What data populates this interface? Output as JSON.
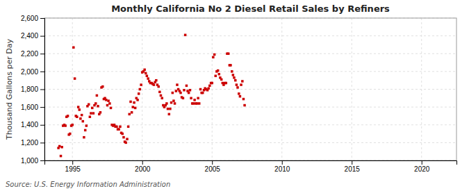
{
  "chart_data": {
    "type": "scatter",
    "title": "Monthly California No 2 Diesel Retail Sales by Refiners",
    "ylabel": "Thousand Gallons per Day",
    "annotations": [
      "Source: U.S. Energy Information Administration"
    ],
    "color": "#CC0000",
    "marker": "square",
    "grid": true,
    "xlim": [
      1993.0,
      2022.5
    ],
    "ylim": [
      1000,
      2600
    ],
    "xticks": [
      1995,
      2000,
      2005,
      2010,
      2015,
      2020
    ],
    "yticks": [
      {
        "value": 1000,
        "label": "1,000"
      },
      {
        "value": 1200,
        "label": "1,200"
      },
      {
        "value": 1400,
        "label": "1,400"
      },
      {
        "value": 1600,
        "label": "1,600"
      },
      {
        "value": 1800,
        "label": "1,800"
      },
      {
        "value": 2000,
        "label": "2,000"
      },
      {
        "value": 2200,
        "label": "2,200"
      },
      {
        "value": 2400,
        "label": "2,400"
      },
      {
        "value": 2600,
        "label": "2,600"
      }
    ],
    "x": [
      1994.0,
      1994.08,
      1994.17,
      1994.25,
      1994.33,
      1994.42,
      1994.5,
      1994.58,
      1994.67,
      1994.75,
      1994.83,
      1994.92,
      1995.0,
      1995.08,
      1995.17,
      1995.25,
      1995.33,
      1995.42,
      1995.5,
      1995.58,
      1995.67,
      1995.75,
      1995.83,
      1995.92,
      1996.0,
      1996.08,
      1996.17,
      1996.25,
      1996.33,
      1996.42,
      1996.5,
      1996.58,
      1996.67,
      1996.75,
      1996.83,
      1996.92,
      1997.0,
      1997.08,
      1997.17,
      1997.25,
      1997.33,
      1997.42,
      1997.5,
      1997.58,
      1997.67,
      1997.75,
      1997.83,
      1997.92,
      1998.0,
      1998.08,
      1998.17,
      1998.25,
      1998.33,
      1998.42,
      1998.5,
      1998.58,
      1998.67,
      1998.75,
      1998.83,
      1998.92,
      1999.0,
      1999.08,
      1999.17,
      1999.25,
      1999.33,
      1999.42,
      1999.5,
      1999.58,
      1999.67,
      1999.75,
      1999.83,
      1999.92,
      2000.0,
      2000.08,
      2000.17,
      2000.25,
      2000.33,
      2000.42,
      2000.5,
      2000.58,
      2000.67,
      2000.75,
      2000.83,
      2000.92,
      2001.0,
      2001.08,
      2001.17,
      2001.25,
      2001.33,
      2001.42,
      2001.5,
      2001.58,
      2001.67,
      2001.75,
      2001.83,
      2001.92,
      2002.0,
      2002.08,
      2002.17,
      2002.25,
      2002.33,
      2002.42,
      2002.5,
      2002.58,
      2002.67,
      2002.75,
      2002.83,
      2002.92,
      2003.0,
      2003.08,
      2003.17,
      2003.25,
      2003.33,
      2003.42,
      2003.5,
      2003.58,
      2003.67,
      2003.75,
      2003.83,
      2003.92,
      2004.0,
      2004.08,
      2004.17,
      2004.25,
      2004.33,
      2004.42,
      2004.5,
      2004.58,
      2004.67,
      2004.75,
      2004.83,
      2004.92,
      2005.0,
      2005.08,
      2005.17,
      2005.25,
      2005.33,
      2005.42,
      2005.5,
      2005.58,
      2005.67,
      2005.75,
      2005.83,
      2005.92,
      2006.0,
      2006.08,
      2006.17,
      2006.25,
      2006.33,
      2006.42,
      2006.5,
      2006.58,
      2006.67,
      2006.75,
      2006.83,
      2006.92,
      2007.0,
      2007.08,
      2007.17,
      2007.25,
      2007.33
    ],
    "values": [
      1140,
      1160,
      1050,
      1150,
      1390,
      1400,
      1390,
      1490,
      1500,
      1290,
      1300,
      1390,
      1400,
      2270,
      1920,
      1500,
      1490,
      1600,
      1570,
      1470,
      1510,
      1440,
      1260,
      1340,
      1390,
      1610,
      1630,
      1490,
      1530,
      1590,
      1530,
      1620,
      1640,
      1730,
      1610,
      1520,
      1540,
      1820,
      1830,
      1690,
      1700,
      1680,
      1620,
      1670,
      1640,
      1590,
      1400,
      1390,
      1400,
      1380,
      1380,
      1350,
      1350,
      1380,
      1310,
      1300,
      1260,
      1210,
      1200,
      1240,
      1380,
      1520,
      1660,
      1540,
      1600,
      1650,
      1590,
      1700,
      1680,
      1750,
      1800,
      1850,
      1990,
      2000,
      2020,
      1980,
      1950,
      1920,
      1890,
      1870,
      1870,
      1860,
      1850,
      1880,
      1900,
      1850,
      1830,
      1770,
      1730,
      1700,
      1620,
      1600,
      1620,
      1640,
      1580,
      1520,
      1580,
      1650,
      1760,
      1670,
      1640,
      1780,
      1850,
      1800,
      1780,
      1760,
      1710,
      1700,
      1790,
      2410,
      1840,
      1780,
      1760,
      1790,
      1700,
      1640,
      1640,
      1680,
      1640,
      1640,
      1700,
      1640,
      1800,
      1760,
      1760,
      1790,
      1810,
      1800,
      1790,
      1810,
      1840,
      1870,
      1870,
      2160,
      2190,
      1950,
      2000,
      2010,
      1970,
      1930,
      1910,
      1870,
      1850,
      1870,
      1870,
      2200,
      2200,
      2070,
      2070,
      2000,
      1960,
      1930,
      1900,
      1850,
      1820,
      1750,
      1720,
      1850,
      1890,
      1690,
      1620
    ]
  }
}
